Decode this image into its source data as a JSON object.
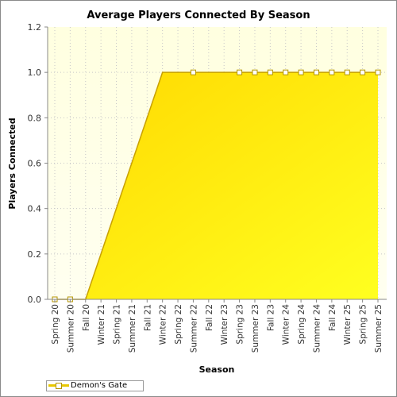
{
  "chart_data": {
    "type": "area",
    "title": "Average Players Connected By Season",
    "xlabel": "Season",
    "ylabel": "Players Connected",
    "categories": [
      "Spring 20",
      "Summer 20",
      "Fall 20",
      "Winter 21",
      "Spring 21",
      "Summer 21",
      "Fall 21",
      "Winter 22",
      "Spring 22",
      "Summer 22",
      "Fall 22",
      "Winter 23",
      "Spring 23",
      "Summer 23",
      "Fall 23",
      "Winter 24",
      "Spring 24",
      "Summer 24",
      "Fall 24",
      "Winter 25",
      "Spring 25",
      "Summer 25"
    ],
    "series": [
      {
        "name": "Demon's Gate",
        "values": [
          0,
          0,
          0,
          0.2,
          0.4,
          0.6,
          0.8,
          1.0,
          1.0,
          1.0,
          1.0,
          1.0,
          1.0,
          1.0,
          1.0,
          1.0,
          1.0,
          1.0,
          1.0,
          1.0,
          1.0,
          1.0
        ],
        "markers": [
          true,
          true,
          false,
          false,
          false,
          false,
          false,
          false,
          false,
          true,
          false,
          false,
          true,
          true,
          true,
          true,
          true,
          true,
          true,
          true,
          true,
          true
        ]
      }
    ],
    "yticks": [
      "0.0",
      "0.2",
      "0.4",
      "0.6",
      "0.8",
      "1.0",
      "1.2"
    ],
    "ylim": [
      0,
      1.2
    ],
    "grid": true,
    "legend_position": "bottom-left",
    "colors": {
      "fill_top": "#ffd800",
      "fill_bottom": "#ffff20",
      "line": "#c8a000",
      "marker_stroke": "#b49600",
      "plot_background_top": "#ffffe0",
      "plot_background_bottom": "#fffff0",
      "grid": "#c8c8c8"
    }
  }
}
